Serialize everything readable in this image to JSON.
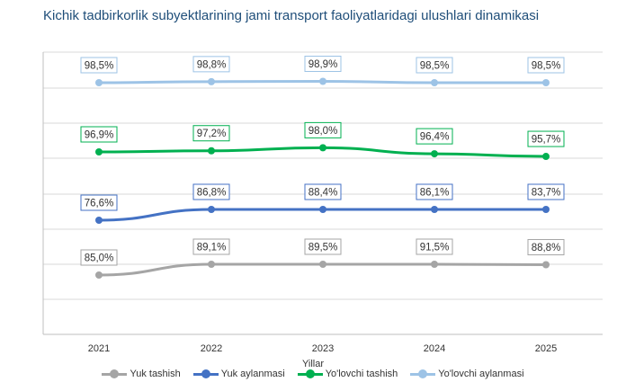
{
  "title": "Kichik tadbirkorlik subyektlarining jami transport faoliyatlaridagi ulushlari dinamikasi",
  "chart_data": {
    "type": "line",
    "x": [
      "2021",
      "2022",
      "2023",
      "2024",
      "2025"
    ],
    "xlabel": "Yillar",
    "ylabel": "",
    "grid": true,
    "legend_position": "bottom",
    "series": [
      {
        "name": "Yuk tashish",
        "color": "#a5a5a5",
        "values": [
          85.0,
          89.1,
          89.5,
          91.5,
          88.8
        ],
        "labels": [
          "85,0%",
          "89,1%",
          "89,5%",
          "91,5%",
          "88,8%"
        ]
      },
      {
        "name": "Yuk aylanmasi",
        "color": "#4472c4",
        "values": [
          76.6,
          86.8,
          88.4,
          86.1,
          83.7
        ],
        "labels": [
          "76,6%",
          "86,8%",
          "88,4%",
          "86,1%",
          "83,7%"
        ]
      },
      {
        "name": "Yo'lovchi tashish",
        "color": "#00b050",
        "values": [
          96.9,
          97.2,
          98.0,
          96.4,
          95.7
        ],
        "labels": [
          "96,9%",
          "97,2%",
          "98,0%",
          "96,4%",
          "95,7%"
        ]
      },
      {
        "name": "Yo'lovchi aylanmasi",
        "color": "#9dc3e6",
        "values": [
          98.5,
          98.8,
          98.9,
          98.5,
          98.5
        ],
        "labels": [
          "98,5%",
          "98,8%",
          "98,9%",
          "98,5%",
          "98,5%"
        ]
      }
    ]
  }
}
